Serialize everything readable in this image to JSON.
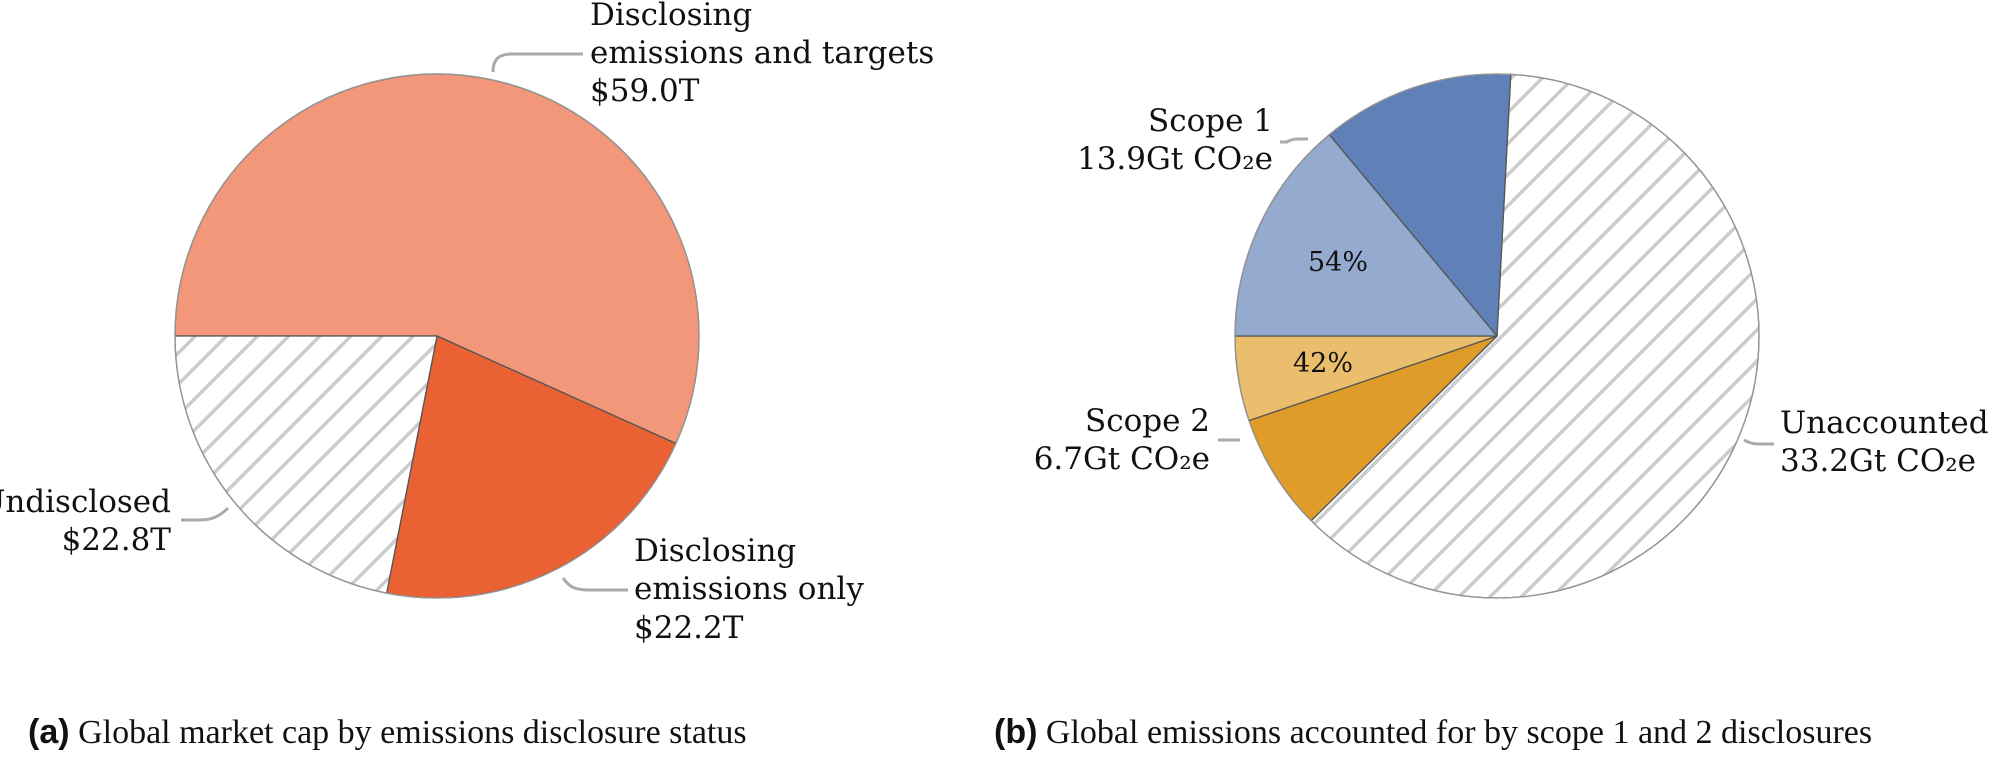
{
  "colors": {
    "disclosing_targets": "#F2977A",
    "disclosing_only": "#EA6234",
    "undisclosed_hatch": "#cccccc",
    "scope1_dark": "#6080B8",
    "scope1_light": "#94ABCF",
    "scope2_light": "#EBBE6D",
    "scope2_dark": "#E09C28",
    "unaccounted_hatch": "#cccccc",
    "outline": "#555555",
    "leader": "#aaaaaa"
  },
  "chart_data": [
    {
      "type": "pie",
      "id": "a",
      "caption_label": "(a)",
      "caption_text": "Global market cap by emissions disclosure status",
      "unit": "$T",
      "start_angle_deg": 180,
      "slices": [
        {
          "name": "Disclosing emissions and targets",
          "value": 59.0,
          "value_label": "$59.0T",
          "label_lines": [
            "Disclosing",
            "emissions and targets",
            "$59.0T"
          ],
          "fill": "disclosing_targets"
        },
        {
          "name": "Disclosing emissions only",
          "value": 22.2,
          "value_label": "$22.2T",
          "label_lines": [
            "Disclosing",
            "emissions only",
            "$22.2T"
          ],
          "fill": "disclosing_only"
        },
        {
          "name": "Undisclosed",
          "value": 22.8,
          "value_label": "$22.8T",
          "label_lines": [
            "Undisclosed",
            "$22.8T"
          ],
          "fill": "hatch"
        }
      ]
    },
    {
      "type": "pie",
      "id": "b",
      "caption_label": "(b)",
      "caption_text": "Global emissions accounted for by scope 1 and 2 disclosures",
      "unit": "Gt CO2e",
      "start_angle_deg": 180,
      "slices": [
        {
          "name": "Scope 1",
          "value": 13.9,
          "value_label": "13.9Gt CO₂e",
          "label_lines": [
            "Scope 1",
            "13.9Gt CO₂e"
          ],
          "fill": "scope1",
          "inner_share_pct": 54,
          "inner_share_label": "54%"
        },
        {
          "name": "Unaccounted",
          "value": 33.2,
          "value_label": "33.2Gt CO₂e",
          "label_lines": [
            "Unaccounted",
            "33.2Gt CO₂e"
          ],
          "fill": "hatch"
        },
        {
          "name": "Scope 2",
          "value": 6.7,
          "value_label": "6.7Gt CO₂e",
          "label_lines": [
            "Scope 2",
            "6.7Gt CO₂e"
          ],
          "fill": "scope2",
          "inner_share_pct": 42,
          "inner_share_label": "42%"
        }
      ]
    }
  ]
}
